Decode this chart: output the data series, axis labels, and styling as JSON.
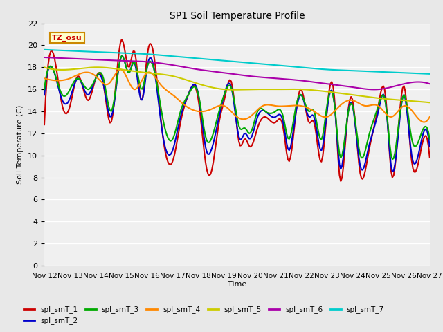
{
  "title": "SP1 Soil Temperature Profile",
  "xlabel": "Time",
  "ylabel": "Soil Temperature (C)",
  "ylim": [
    0,
    22
  ],
  "yticks": [
    0,
    2,
    4,
    6,
    8,
    10,
    12,
    14,
    16,
    18,
    20,
    22
  ],
  "xtick_labels": [
    "Nov 12",
    "Nov 13",
    "Nov 14",
    "Nov 15",
    "Nov 16",
    "Nov 17",
    "Nov 18",
    "Nov 19",
    "Nov 20",
    "Nov 21",
    "Nov 22",
    "Nov 23",
    "Nov 24",
    "Nov 25",
    "Nov 26",
    "Nov 27"
  ],
  "series_colors": {
    "spl_smT_1": "#cc0000",
    "spl_smT_2": "#0000cc",
    "spl_smT_3": "#00aa00",
    "spl_smT_4": "#ff8800",
    "spl_smT_5": "#cccc00",
    "spl_smT_6": "#aa00aa",
    "spl_smT_7": "#00cccc"
  },
  "tz_label": "TZ_osu",
  "tz_bg": "#ffffcc",
  "tz_border": "#cc8800",
  "background_color": "#e8e8e8",
  "plot_bg": "#f0f0f0",
  "grid_color": "#ffffff",
  "line_width": 1.5,
  "spl_smT_1_keypoints_x": [
    0,
    0.3,
    0.7,
    1.0,
    1.3,
    1.7,
    2.0,
    2.3,
    2.6,
    3.0,
    3.3,
    3.5,
    3.8,
    4.0,
    4.3,
    4.6,
    5.0,
    5.3,
    5.6,
    6.0,
    6.3,
    6.5,
    6.8,
    7.0,
    7.3,
    7.6,
    7.8,
    8.0,
    8.3,
    8.6,
    9.0,
    9.3,
    9.5,
    9.8,
    10.0,
    10.3,
    10.5,
    10.8,
    11.0,
    11.3,
    11.5,
    11.8,
    12.0,
    12.3,
    12.6,
    13.0,
    13.3,
    13.5,
    13.8,
    14.0,
    14.3,
    14.6,
    15.0
  ],
  "spl_smT_1_keypoints_y": [
    12.8,
    19.5,
    14.5,
    14.5,
    17.2,
    15.0,
    17.0,
    16.5,
    13.0,
    20.5,
    18.0,
    19.5,
    15.0,
    19.0,
    18.5,
    12.0,
    9.5,
    13.0,
    15.5,
    15.0,
    9.0,
    8.5,
    13.0,
    15.0,
    16.5,
    11.0,
    11.5,
    10.8,
    12.5,
    13.5,
    13.0,
    12.5,
    9.5,
    14.0,
    16.0,
    13.0,
    13.0,
    9.5,
    14.0,
    15.0,
    8.0,
    13.5,
    15.0,
    8.3,
    10.0,
    14.5,
    15.0,
    8.5,
    13.0,
    16.3,
    9.5,
    9.8,
    9.8
  ],
  "spl_smT_2_keypoints_x": [
    0,
    0.3,
    0.7,
    1.0,
    1.3,
    1.7,
    2.0,
    2.3,
    2.6,
    3.0,
    3.3,
    3.5,
    3.8,
    4.0,
    4.3,
    4.6,
    5.0,
    5.3,
    5.6,
    6.0,
    6.3,
    6.5,
    6.8,
    7.0,
    7.3,
    7.6,
    7.8,
    8.0,
    8.3,
    8.6,
    9.0,
    9.3,
    9.5,
    9.8,
    10.0,
    10.3,
    10.5,
    10.8,
    11.0,
    11.3,
    11.5,
    11.8,
    12.0,
    12.3,
    12.6,
    13.0,
    13.3,
    13.5,
    13.8,
    14.0,
    14.3,
    14.6,
    15.0
  ],
  "spl_smT_2_keypoints_y": [
    15.5,
    18.0,
    15.0,
    15.2,
    17.0,
    15.5,
    17.0,
    16.5,
    13.5,
    19.0,
    17.5,
    18.5,
    15.0,
    18.0,
    17.5,
    12.0,
    10.5,
    13.5,
    15.5,
    15.5,
    10.5,
    10.5,
    13.5,
    15.5,
    16.0,
    11.5,
    12.0,
    11.5,
    13.5,
    14.0,
    13.5,
    13.0,
    10.5,
    14.0,
    15.5,
    13.5,
    13.5,
    10.5,
    14.0,
    14.5,
    9.0,
    13.5,
    14.5,
    9.0,
    10.5,
    14.0,
    14.5,
    9.0,
    12.5,
    15.5,
    10.0,
    10.5,
    10.8
  ],
  "spl_smT_3_keypoints_x": [
    0,
    0.3,
    0.7,
    1.0,
    1.3,
    1.7,
    2.0,
    2.3,
    2.6,
    3.0,
    3.3,
    3.5,
    3.8,
    4.0,
    4.3,
    4.6,
    5.0,
    5.3,
    5.6,
    6.0,
    6.3,
    6.5,
    6.8,
    7.0,
    7.3,
    7.6,
    7.8,
    8.0,
    8.3,
    8.6,
    9.0,
    9.3,
    9.5,
    9.8,
    10.0,
    10.3,
    10.5,
    10.8,
    11.0,
    11.3,
    11.5,
    11.8,
    12.0,
    12.3,
    12.6,
    13.0,
    13.3,
    13.5,
    13.8,
    14.0,
    14.3,
    14.6,
    15.0
  ],
  "spl_smT_3_keypoints_y": [
    16.0,
    18.0,
    15.5,
    16.0,
    17.0,
    16.0,
    17.0,
    17.0,
    14.0,
    19.0,
    17.5,
    18.5,
    16.0,
    18.0,
    17.5,
    13.5,
    11.5,
    14.0,
    15.5,
    15.5,
    11.5,
    11.5,
    14.0,
    15.5,
    16.0,
    12.5,
    12.5,
    12.0,
    14.0,
    14.0,
    14.0,
    13.5,
    11.5,
    14.5,
    15.5,
    14.0,
    14.0,
    11.5,
    14.5,
    14.5,
    10.0,
    13.5,
    14.5,
    10.0,
    11.5,
    14.5,
    14.5,
    10.0,
    13.0,
    15.5,
    11.5,
    11.5,
    11.5
  ],
  "spl_smT_4_keypoints_x": [
    0,
    0.5,
    1.0,
    1.5,
    2.0,
    2.5,
    3.0,
    3.5,
    4.0,
    4.5,
    5.0,
    5.5,
    6.0,
    6.5,
    7.0,
    7.5,
    8.0,
    8.5,
    9.0,
    9.5,
    10.0,
    10.5,
    11.0,
    11.5,
    12.0,
    12.5,
    13.0,
    13.5,
    14.0,
    14.5,
    15.0
  ],
  "spl_smT_4_keypoints_y": [
    17.0,
    16.8,
    17.0,
    17.5,
    17.2,
    16.5,
    17.8,
    16.0,
    17.5,
    16.5,
    15.5,
    14.5,
    14.0,
    14.2,
    14.5,
    13.5,
    13.5,
    14.5,
    14.5,
    14.5,
    14.5,
    14.0,
    13.5,
    14.5,
    15.0,
    14.5,
    14.5,
    13.5,
    14.5,
    13.5,
    13.5
  ],
  "spl_smT_5_keypoints_x": [
    0,
    1.0,
    2.0,
    3.0,
    4.0,
    5.0,
    6.0,
    7.0,
    8.0,
    9.0,
    10.0,
    11.0,
    12.0,
    13.0,
    14.0,
    15.0
  ],
  "spl_smT_5_keypoints_y": [
    18.0,
    17.8,
    18.0,
    17.8,
    17.5,
    17.2,
    16.5,
    16.0,
    16.0,
    16.0,
    16.0,
    15.8,
    15.5,
    15.2,
    15.0,
    14.8
  ],
  "spl_smT_6_keypoints_x": [
    0,
    1.0,
    2.0,
    3.0,
    4.0,
    5.0,
    6.0,
    7.0,
    8.0,
    9.0,
    10.0,
    11.0,
    12.0,
    13.0,
    14.0,
    15.0
  ],
  "spl_smT_6_keypoints_y": [
    18.9,
    18.8,
    18.7,
    18.6,
    18.5,
    18.2,
    17.8,
    17.5,
    17.2,
    17.0,
    16.8,
    16.5,
    16.2,
    16.0,
    16.5,
    16.5
  ],
  "spl_smT_7_keypoints_x": [
    0,
    1.0,
    2.0,
    3.0,
    4.0,
    5.0,
    6.0,
    7.0,
    8.0,
    9.0,
    10.0,
    11.0,
    12.0,
    13.0,
    14.0,
    15.0
  ],
  "spl_smT_7_keypoints_y": [
    19.6,
    19.5,
    19.4,
    19.3,
    19.2,
    19.0,
    18.8,
    18.6,
    18.4,
    18.2,
    18.0,
    17.8,
    17.7,
    17.6,
    17.5,
    17.4
  ]
}
